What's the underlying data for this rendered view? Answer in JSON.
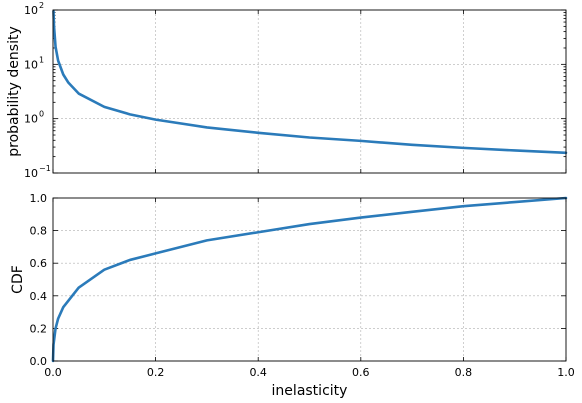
{
  "chart_data": [
    {
      "type": "line",
      "xlabel": "",
      "ylabel": "probability density",
      "yscale": "log",
      "xlim": [
        0,
        1
      ],
      "ylim": [
        0.1,
        100
      ],
      "x_ticks": [
        0.0,
        0.2,
        0.4,
        0.6,
        0.8,
        1.0
      ],
      "y_tick_labels": [
        "10",
        "10",
        "10",
        "10"
      ],
      "y_tick_exponents": [
        "−1",
        "0",
        "1",
        "2"
      ],
      "y_tick_values": [
        0.1,
        1,
        10,
        100
      ],
      "grid": true,
      "color": "#2b7bba",
      "series": [
        {
          "x": [
            0.001,
            0.002,
            0.005,
            0.01,
            0.02,
            0.03,
            0.05,
            0.1,
            0.15,
            0.2,
            0.3,
            0.4,
            0.5,
            0.6,
            0.7,
            0.8,
            0.9,
            1.0
          ],
          "y": [
            95,
            50,
            21,
            11.7,
            6.5,
            4.6,
            2.9,
            1.65,
            1.2,
            0.96,
            0.69,
            0.55,
            0.45,
            0.39,
            0.33,
            0.29,
            0.26,
            0.235
          ]
        }
      ]
    },
    {
      "type": "line",
      "xlabel": "inelasticity",
      "ylabel": "CDF",
      "xlim": [
        0,
        1
      ],
      "ylim": [
        0,
        1
      ],
      "x_ticks": [
        0.0,
        0.2,
        0.4,
        0.6,
        0.8,
        1.0
      ],
      "y_ticks": [
        0.0,
        0.2,
        0.4,
        0.6,
        0.8,
        1.0
      ],
      "grid": true,
      "color": "#2b7bba",
      "series": [
        {
          "x": [
            0,
            0.001,
            0.005,
            0.01,
            0.02,
            0.05,
            0.1,
            0.15,
            0.2,
            0.3,
            0.4,
            0.5,
            0.6,
            0.7,
            0.8,
            0.9,
            1.0
          ],
          "y": [
            0,
            0.1,
            0.2,
            0.26,
            0.33,
            0.45,
            0.56,
            0.62,
            0.66,
            0.74,
            0.79,
            0.84,
            0.88,
            0.915,
            0.95,
            0.975,
            1.0
          ]
        }
      ]
    }
  ]
}
